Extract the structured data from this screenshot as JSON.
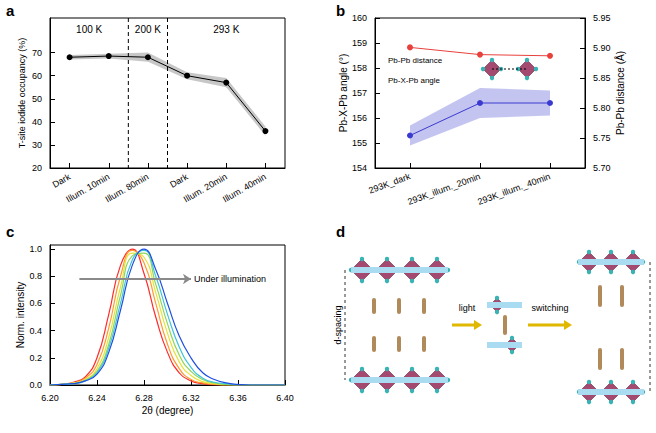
{
  "chart_data": [
    {
      "panel": "a",
      "type": "line",
      "categories": [
        "Dark",
        "Illum. 10min",
        "Illum. 80min",
        "Dark",
        "Illum. 20min",
        "Illum. 40min"
      ],
      "values": [
        68,
        68.5,
        68,
        60,
        57,
        36
      ],
      "errors": [
        1,
        1,
        2,
        1.5,
        2,
        2
      ],
      "color": "#000000",
      "marker": "circle",
      "ylabel": "T-site iodide occupancy (%)",
      "ylim": [
        20,
        85
      ],
      "yticks": [
        20,
        30,
        40,
        50,
        60,
        70
      ],
      "grid": false,
      "annotations": [
        {
          "text": "100 K",
          "first": 0,
          "last": 1
        },
        {
          "text": "200 K",
          "first": 2,
          "last": 2
        },
        {
          "text": "293 K",
          "first": 3,
          "last": 5
        }
      ]
    },
    {
      "panel": "b",
      "type": "line",
      "categories": [
        "293K_dark",
        "293K_illum._20min",
        "293K_illum._40min"
      ],
      "series": [
        {
          "color": "#3a3ad0",
          "values": [
            155.3,
            156.6,
            156.6
          ],
          "errors": [
            0.4,
            0.6,
            0.5
          ]
        },
        {
          "color": "#e8413c",
          "values": [
            5.901,
            5.889,
            5.887
          ],
          "axis": "y2"
        }
      ],
      "marker": "circle",
      "ylabel": "Pb-X-Pb angle (°)",
      "y2label": "Pb-Pb distance (Å)",
      "ylim": [
        154,
        160
      ],
      "yticks": [
        154,
        155,
        156,
        157,
        158,
        159,
        160
      ],
      "y2lim": [
        5.7,
        5.95
      ],
      "y2ticks": [
        {
          "value": 5.7,
          "label": "5.70"
        },
        5.75,
        {
          "value": 5.8,
          "label": "5.80"
        },
        5.85,
        {
          "value": 5.9,
          "label": "5.90"
        },
        5.95
      ],
      "grid": false,
      "annotations": [
        {
          "text": "Pb-Pb distance"
        },
        {
          "text": "Pb-X-Pb angle"
        }
      ]
    },
    {
      "panel": "c",
      "type": "line",
      "x": [
        6.2,
        6.21,
        6.22,
        6.23,
        6.24,
        6.25,
        6.26,
        6.27,
        6.28,
        6.29,
        6.3,
        6.31,
        6.32,
        6.33,
        6.34,
        6.35,
        6.36,
        6.37,
        6.38,
        6.39,
        6.4
      ],
      "series": [
        {
          "color": "#ff2a2a",
          "values": [
            0,
            0.005,
            0.02,
            0.06,
            0.2,
            0.52,
            0.88,
            1.0,
            0.82,
            0.5,
            0.24,
            0.09,
            0.03,
            0.01,
            0,
            0,
            0,
            0,
            0,
            0,
            0
          ]
        },
        {
          "color": "#ff9a2e",
          "values": [
            0,
            0.005,
            0.015,
            0.05,
            0.15,
            0.42,
            0.8,
            0.99,
            0.9,
            0.6,
            0.3,
            0.12,
            0.04,
            0.015,
            0.005,
            0,
            0,
            0,
            0,
            0,
            0
          ]
        },
        {
          "color": "#e3e33a",
          "values": [
            0,
            0.005,
            0.015,
            0.04,
            0.12,
            0.35,
            0.72,
            0.97,
            0.94,
            0.68,
            0.38,
            0.17,
            0.07,
            0.025,
            0.01,
            0,
            0,
            0,
            0,
            0,
            0
          ]
        },
        {
          "color": "#8fd65a",
          "values": [
            0,
            0.005,
            0.01,
            0.035,
            0.1,
            0.3,
            0.66,
            0.95,
            0.97,
            0.74,
            0.45,
            0.22,
            0.1,
            0.04,
            0.015,
            0.005,
            0,
            0,
            0,
            0,
            0
          ]
        },
        {
          "color": "#3fc4d8",
          "values": [
            0,
            0.005,
            0.01,
            0.03,
            0.09,
            0.27,
            0.6,
            0.92,
            0.99,
            0.8,
            0.52,
            0.28,
            0.13,
            0.05,
            0.02,
            0.01,
            0,
            0,
            0,
            0,
            0
          ]
        },
        {
          "color": "#1f4fe0",
          "values": [
            0,
            0.005,
            0.01,
            0.03,
            0.08,
            0.24,
            0.55,
            0.88,
            1.0,
            0.85,
            0.6,
            0.36,
            0.2,
            0.09,
            0.04,
            0.015,
            0.005,
            0,
            0,
            0,
            0
          ]
        }
      ],
      "xlabel": "2θ (degree)",
      "ylabel": "Norm. intensity",
      "xlim": [
        6.2,
        6.4
      ],
      "xticks": [
        {
          "value": 6.2,
          "label": "6.20"
        },
        6.24,
        6.28,
        6.32,
        6.36,
        {
          "value": 6.4,
          "label": "6.40"
        }
      ],
      "ylim": [
        0,
        1.03
      ],
      "yticks": [
        {
          "value": 0,
          "label": "0.0"
        },
        0.2,
        0.4,
        0.6,
        0.8,
        {
          "value": 1,
          "label": "1.0"
        }
      ],
      "grid": false,
      "annotations": [
        {
          "text": "Under illumination",
          "from": [
            6.225,
            0.78
          ],
          "to": [
            6.32,
            0.78
          ]
        }
      ]
    }
  ],
  "diagram": {
    "panel": "d",
    "labels": {
      "spacing": "d-spacing",
      "first_step": "light",
      "second_step": "switching"
    }
  }
}
